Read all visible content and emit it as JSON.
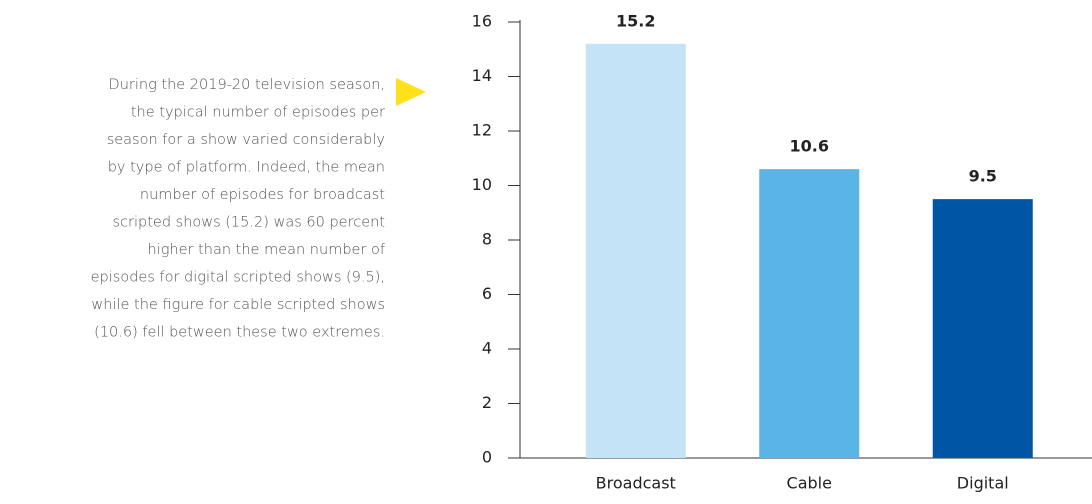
{
  "annotation": [
    "During the 2019-20 television season,",
    "the typical number of episodes per",
    "season for a show varied considerably",
    "by type of platform. Indeed, the mean",
    "number of episodes for broadcast",
    "scripted shows (15.2) was 60 percent",
    "higher than the mean number of",
    "episodes for digital scripted shows (9.5),",
    "while the figure for cable scripted shows",
    "(10.6) fell between these two extremes."
  ],
  "chart_data": {
    "type": "bar",
    "categories": [
      "Broadcast",
      "Cable",
      "Digital"
    ],
    "values": [
      15.2,
      10.6,
      9.5
    ],
    "colors": [
      "#c5e3f6",
      "#5ab4e5",
      "#0055a5"
    ],
    "ylim": [
      0,
      16
    ],
    "yticks": [
      0,
      2,
      4,
      6,
      8,
      10,
      12,
      14,
      16
    ],
    "grid": false
  }
}
